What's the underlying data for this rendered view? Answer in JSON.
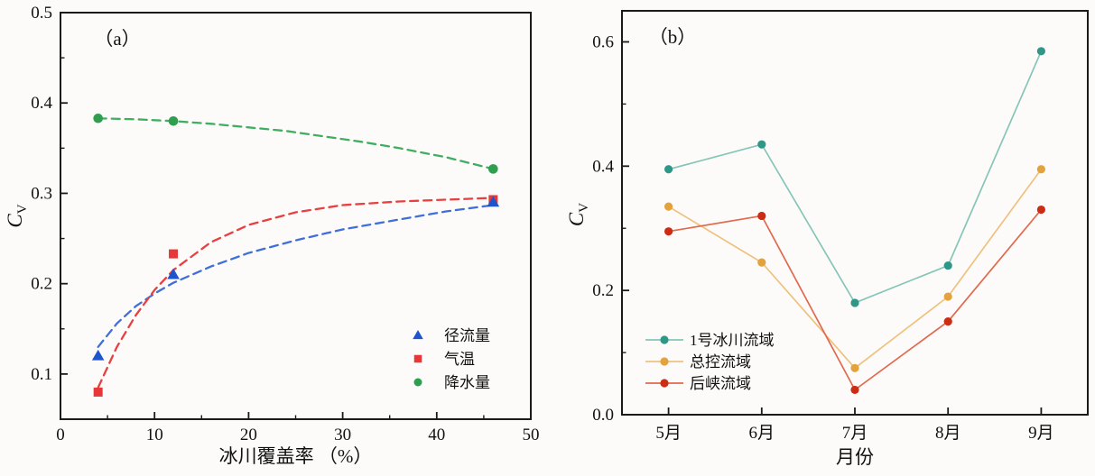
{
  "figure": {
    "background": "#fdfbfa",
    "axis_color": "#1a1a1a"
  },
  "chart_data": [
    {
      "id": "a",
      "type": "scatter",
      "panel_label": "（a）",
      "xlabel": "冰川覆盖率 （%）",
      "ylabel": {
        "main": "C",
        "sub": "V"
      },
      "xlim": [
        0,
        50
      ],
      "ylim": [
        0.05,
        0.5
      ],
      "grid": false,
      "xticks": [
        0,
        10,
        20,
        30,
        40,
        50
      ],
      "xtick_labels": [
        "0",
        "10",
        "20",
        "30",
        "40",
        "50"
      ],
      "xticks_minor": [
        5,
        15,
        25,
        35,
        45
      ],
      "yticks": [
        0.1,
        0.2,
        0.3,
        0.4,
        0.5
      ],
      "ytick_labels": [
        "0.1",
        "0.2",
        "0.3",
        "0.4",
        "0.5"
      ],
      "yticks_minor": [
        0.15,
        0.25,
        0.35,
        0.45
      ],
      "legend_position": "lower-right-inside",
      "series": [
        {
          "key": "runoff",
          "name": "径流量",
          "marker": "triangle",
          "marker_color": "#1f55cc",
          "trend_color": "#3f6fd9",
          "trend_style": "dashed",
          "points": [
            [
              4,
              0.12
            ],
            [
              12,
              0.21
            ],
            [
              46,
              0.29
            ]
          ],
          "trend": [
            [
              4,
              0.13
            ],
            [
              6,
              0.156
            ],
            [
              8,
              0.175
            ],
            [
              10,
              0.189
            ],
            [
              12,
              0.201
            ],
            [
              16,
              0.219
            ],
            [
              20,
              0.234
            ],
            [
              25,
              0.248
            ],
            [
              30,
              0.26
            ],
            [
              36,
              0.271
            ],
            [
              41,
              0.28
            ],
            [
              46,
              0.287
            ]
          ]
        },
        {
          "key": "temperature",
          "name": "气温",
          "marker": "square",
          "marker_color": "#e63838",
          "trend_color": "#e64040",
          "trend_style": "dashed",
          "points": [
            [
              4,
              0.08
            ],
            [
              12,
              0.233
            ],
            [
              46,
              0.293
            ]
          ],
          "trend": [
            [
              4,
              0.085
            ],
            [
              6,
              0.13
            ],
            [
              8,
              0.165
            ],
            [
              10,
              0.193
            ],
            [
              12,
              0.215
            ],
            [
              16,
              0.246
            ],
            [
              20,
              0.265
            ],
            [
              25,
              0.279
            ],
            [
              30,
              0.287
            ],
            [
              36,
              0.291
            ],
            [
              41,
              0.293
            ],
            [
              46,
              0.295
            ]
          ]
        },
        {
          "key": "precipitation",
          "name": "降水量",
          "marker": "circle",
          "marker_color": "#2f9e4e",
          "trend_color": "#3fae60",
          "trend_style": "dashed",
          "points": [
            [
              4,
              0.383
            ],
            [
              12,
              0.38
            ],
            [
              46,
              0.327
            ]
          ],
          "trend": [
            [
              4,
              0.383
            ],
            [
              8,
              0.382
            ],
            [
              12,
              0.38
            ],
            [
              16,
              0.377
            ],
            [
              20,
              0.373
            ],
            [
              24,
              0.369
            ],
            [
              28,
              0.363
            ],
            [
              32,
              0.357
            ],
            [
              36,
              0.35
            ],
            [
              41,
              0.34
            ],
            [
              46,
              0.327
            ]
          ]
        }
      ]
    },
    {
      "id": "b",
      "type": "line",
      "panel_label": "（b）",
      "xlabel": "月份",
      "ylabel": {
        "main": "C",
        "sub": "V"
      },
      "categories": [
        "5月",
        "6月",
        "7月",
        "8月",
        "9月"
      ],
      "ylim": [
        0,
        0.65
      ],
      "grid": false,
      "yticks": [
        0.0,
        0.2,
        0.4,
        0.6
      ],
      "ytick_labels": [
        "0.0",
        "0.2",
        "0.4",
        "0.6"
      ],
      "yticks_minor": [
        0.1,
        0.3,
        0.5
      ],
      "legend_position": "lower-left-inside",
      "series": [
        {
          "key": "glacier1-basin",
          "name": "1号冰川流域",
          "marker_color": "#2f9788",
          "line_color": "#86c5b8",
          "values": [
            0.395,
            0.435,
            0.18,
            0.24,
            0.585
          ]
        },
        {
          "key": "zongkong-basin",
          "name": "总控流域",
          "marker_color": "#e3a33c",
          "line_color": "#eec27e",
          "values": [
            0.335,
            0.245,
            0.075,
            0.19,
            0.395
          ]
        },
        {
          "key": "houxia-basin",
          "name": "后峡流域",
          "marker_color": "#cc2c12",
          "line_color": "#e06a4e",
          "values": [
            0.295,
            0.32,
            0.04,
            0.15,
            0.33
          ]
        }
      ]
    }
  ]
}
